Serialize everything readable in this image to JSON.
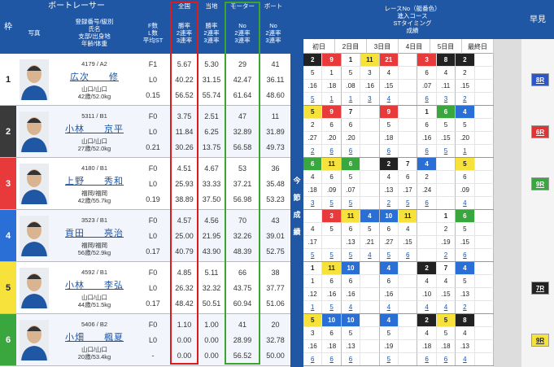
{
  "header": {
    "waku": "枠",
    "photo": "写真",
    "boat_racer": "ボートレーサー",
    "racer_info": [
      "登録番号/級別",
      "氏名",
      "支部/出身地",
      "年齢/体重"
    ],
    "f_l": [
      "F数",
      "L数",
      "平均ST"
    ],
    "national": "全国",
    "local": "当地",
    "motor": "モーター",
    "boat": "ボート",
    "rate_national": [
      "勝率",
      "2連率",
      "3連率"
    ],
    "rate_local": [
      "勝率",
      "2連率",
      "3連率"
    ],
    "rate_motor": [
      "No",
      "2連率",
      "3連率"
    ],
    "rate_boat": [
      "No",
      "2連率",
      "3連率"
    ],
    "race_title": [
      "レースNo（艇番色）",
      "進入コース",
      "STタイミング",
      "成績"
    ],
    "days": [
      "初日",
      "2日目",
      "3日目",
      "4日目",
      "5日目",
      "最終日"
    ],
    "hayami": "早見",
    "side_label": "今節成績"
  },
  "colors": {
    "header": "#1f57a5",
    "frames": [
      "#ffffff",
      "#222222",
      "#e83a3a",
      "#2a6fd6",
      "#f6e23a",
      "#3aa63e"
    ],
    "frame_text": [
      "#222222",
      "#ffffff",
      "#ffffff",
      "#ffffff",
      "#222222",
      "#ffffff"
    ]
  },
  "racers": [
    {
      "frame": "1",
      "reg": "4179 / A2",
      "name": "広次　　修",
      "branch": "山口/山口",
      "age": "42歳/52.0kg",
      "fl": [
        "F1",
        "L0",
        "0.15"
      ],
      "nat": [
        "5.67",
        "40.22",
        "56.52"
      ],
      "loc": [
        "5.30",
        "31.15",
        "55.74"
      ],
      "mot": [
        "29",
        "42.47",
        "61.64"
      ],
      "bt": [
        "41",
        "36.11",
        "48.60"
      ],
      "hayami": "8R",
      "hayami_color": "#2b57c8"
    },
    {
      "frame": "2",
      "reg": "5311 / B1",
      "name": "小林　　京平",
      "branch": "山口/山口",
      "age": "27歳/52.0kg",
      "fl": [
        "F0",
        "L0",
        "0.21"
      ],
      "nat": [
        "3.75",
        "11.84",
        "30.26"
      ],
      "loc": [
        "2.51",
        "6.25",
        "13.75"
      ],
      "mot": [
        "47",
        "32.89",
        "56.58"
      ],
      "bt": [
        "11",
        "31.89",
        "49.73"
      ],
      "hayami": "6R",
      "hayami_color": "#e03535"
    },
    {
      "frame": "3",
      "reg": "4180 / B1",
      "name": "上野　　秀和",
      "branch": "福岡/福岡",
      "age": "42歳/55.7kg",
      "fl": [
        "F0",
        "L0",
        "0.19"
      ],
      "nat": [
        "4.51",
        "25.93",
        "38.89"
      ],
      "loc": [
        "4.67",
        "33.33",
        "37.50"
      ],
      "mot": [
        "53",
        "37.21",
        "56.98"
      ],
      "bt": [
        "36",
        "35.48",
        "53.23"
      ],
      "hayami": "9R",
      "hayami_color": "#3aa63e"
    },
    {
      "frame": "4",
      "reg": "3523 / B1",
      "name": "貢田　　亮治",
      "branch": "福岡/福岡",
      "age": "56歳/52.9kg",
      "fl": [
        "F0",
        "L0",
        "0.17"
      ],
      "nat": [
        "4.57",
        "25.00",
        "40.79"
      ],
      "loc": [
        "4.56",
        "21.95",
        "43.90"
      ],
      "mot": [
        "70",
        "32.26",
        "48.39"
      ],
      "bt": [
        "43",
        "39.01",
        "52.75"
      ],
      "hayami": "",
      "hayami_color": ""
    },
    {
      "frame": "5",
      "reg": "4592 / B1",
      "name": "小林　　李弘",
      "branch": "山口/山口",
      "age": "44歳/51.5kg",
      "fl": [
        "F0",
        "L0",
        "0.17"
      ],
      "nat": [
        "4.85",
        "26.32",
        "48.42"
      ],
      "loc": [
        "5.11",
        "32.32",
        "50.51"
      ],
      "mot": [
        "66",
        "43.75",
        "60.94"
      ],
      "bt": [
        "38",
        "37.77",
        "51.06"
      ],
      "hayami": "7R",
      "hayami_color": "#222222"
    },
    {
      "frame": "6",
      "reg": "5406 / B2",
      "name": "小畑　　楓夏",
      "branch": "山口/山口",
      "age": "20歳/53.4kg",
      "fl": [
        "F0",
        "L0",
        "-"
      ],
      "nat": [
        "1.10",
        "0.00",
        "0.00"
      ],
      "loc": [
        "1.00",
        "0.00",
        "0.00"
      ],
      "mot": [
        "41",
        "28.99",
        "56.52"
      ],
      "bt": [
        "20",
        "32.78",
        "50.00"
      ],
      "hayami": "9R",
      "hayami_color": "#f6e23a"
    }
  ],
  "results": [
    [
      [
        "2",
        "9",
        "1",
        "11",
        "21",
        "",
        "3",
        "8",
        "2",
        ""
      ],
      [
        "5",
        "1",
        "5",
        "3",
        "4",
        "",
        "6",
        "4",
        "2",
        ""
      ],
      [
        ".16",
        ".18",
        ".08",
        ".16",
        ".15",
        "",
        ".07",
        ".11",
        ".15",
        ""
      ],
      [
        "5",
        "1",
        "1",
        "3",
        "4",
        "",
        "6",
        "3",
        "2",
        ""
      ]
    ],
    [
      [
        "5",
        "9",
        "7",
        "",
        "9",
        "",
        "1",
        "6",
        "4",
        ""
      ],
      [
        "2",
        "6",
        "6",
        "",
        "5",
        "",
        "6",
        "5",
        "5",
        ""
      ],
      [
        ".27",
        ".20",
        ".20",
        "",
        ".18",
        "",
        ".16",
        ".15",
        ".20",
        ""
      ],
      [
        "2",
        "6",
        "6",
        "",
        "6",
        "",
        "6",
        "5",
        "1",
        ""
      ]
    ],
    [
      [
        "6",
        "11",
        "6",
        "",
        "2",
        "7",
        "4",
        "",
        "5",
        ""
      ],
      [
        "4",
        "6",
        "5",
        "",
        "4",
        "6",
        "2",
        "",
        "6",
        ""
      ],
      [
        ".18",
        ".09",
        ".07",
        "",
        ".13",
        ".17",
        ".24",
        "",
        ".09",
        ""
      ],
      [
        "3",
        "5",
        "5",
        "",
        "2",
        "5",
        "6",
        "",
        "4",
        ""
      ]
    ],
    [
      [
        "",
        "3",
        "11",
        "4",
        "10",
        "11",
        "",
        "1",
        "6",
        ""
      ],
      [
        "4",
        "5",
        "6",
        "5",
        "6",
        "4",
        "",
        "2",
        "5",
        ""
      ],
      [
        ".17",
        "",
        ".13",
        ".21",
        ".27",
        ".15",
        "",
        ".19",
        ".15",
        ""
      ],
      [
        "5",
        "5",
        "5",
        "4",
        "5",
        "6",
        "",
        "2",
        "6",
        ""
      ]
    ],
    [
      [
        "1",
        "11",
        "10",
        "",
        "4",
        "",
        "2",
        "7",
        "4",
        ""
      ],
      [
        "1",
        "6",
        "6",
        "",
        "6",
        "",
        "4",
        "4",
        "5",
        ""
      ],
      [
        ".12",
        ".16",
        ".16",
        "",
        ".16",
        "",
        ".10",
        ".15",
        ".13",
        ""
      ],
      [
        "1",
        "5",
        "4",
        "",
        "4",
        "",
        "4",
        "4",
        "2",
        ""
      ]
    ],
    [
      [
        "5",
        "10",
        "10",
        "",
        "4",
        "",
        "2",
        "5",
        "8",
        ""
      ],
      [
        "3",
        "6",
        "5",
        "",
        "5",
        "",
        "4",
        "5",
        "4",
        ""
      ],
      [
        ".16",
        ".18",
        ".13",
        "",
        ".19",
        "",
        ".18",
        ".18",
        ".13",
        ""
      ],
      [
        "6",
        "6",
        "6",
        "",
        "5",
        "",
        "6",
        "6",
        "4",
        ""
      ]
    ]
  ]
}
